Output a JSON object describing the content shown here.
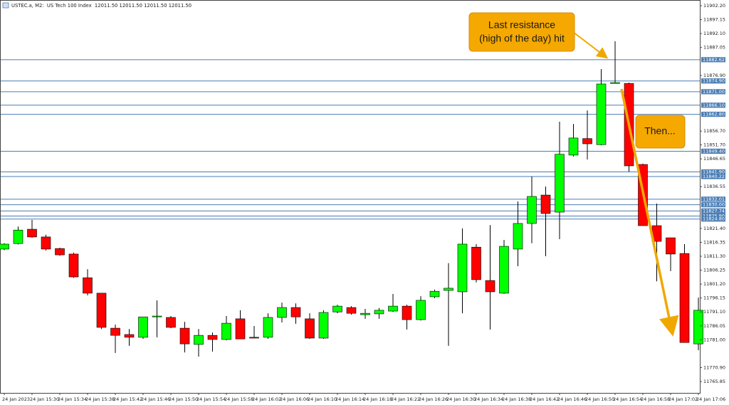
{
  "chart_data": {
    "type": "candlestick",
    "title": "USTEC.a, M2:  US Tech 100 Index  12011.50 12011.50 12011.50 12011.50",
    "annotations": [
      [
        "Last resistance",
        "(high of the day) hit"
      ],
      [
        "Then..."
      ]
    ],
    "categories": [
      "24 Jan 2023",
      null,
      "24 Jan 15:30",
      null,
      "24 Jan 15:34",
      null,
      "24 Jan 15:38",
      null,
      "24 Jan 15:42",
      null,
      "24 Jan 15:46",
      null,
      "24 Jan 15:50",
      null,
      "24 Jan 15:54",
      null,
      "24 Jan 15:58",
      null,
      "24 Jan 16:02",
      null,
      "24 Jan 16:06",
      null,
      "24 Jan 16:10",
      null,
      "24 Jan 16:14",
      null,
      "24 Jan 16:18",
      null,
      "24 Jan 16:22",
      null,
      "24 Jan 16:26",
      null,
      "24 Jan 16:30",
      null,
      "24 Jan 16:34",
      null,
      "24 Jan 16:38",
      null,
      "24 Jan 16:42",
      null,
      "24 Jan 16:46",
      null,
      "24 Jan 16:50",
      null,
      "24 Jan 16:54",
      null,
      "24 Jan 16:58",
      null,
      "24 Jan 17:02",
      null,
      "24 Jan 17:06"
    ],
    "open": [
      11813.9,
      11815.9,
      11821.1,
      11818.3,
      11814.1,
      11812.1,
      11803.5,
      11797.9,
      11785.2,
      11782.9,
      11781.9,
      11789.3,
      11789.1,
      11785.2,
      11779.3,
      11782.6,
      11781.1,
      11788.6,
      11781.9,
      11781.9,
      11789.1,
      11792.7,
      11788.6,
      11781.6,
      11791.1,
      11792.7,
      11790.1,
      11790.4,
      11791.4,
      11793.2,
      11788.3,
      11796.6,
      11798.9,
      11798.4,
      11814.6,
      11802.5,
      11797.9,
      11813.9,
      11823.2,
      11833.5,
      11827.3,
      11848.0,
      11854.0,
      11851.8,
      11874.0,
      11874.0,
      11844.6,
      11822.4,
      11818.0,
      11812.3,
      11779.5
    ],
    "high": [
      11816.0,
      11822.1,
      11824.5,
      11819.1,
      11814.4,
      11812.6,
      11806.6,
      11797.9,
      11786.5,
      11784.9,
      11789.3,
      11795.3,
      11789.6,
      11787.5,
      11784.9,
      11783.6,
      11789.6,
      11791.7,
      11786.0,
      11790.6,
      11794.5,
      11794.2,
      11790.6,
      11791.7,
      11793.7,
      11793.2,
      11792.2,
      11792.5,
      11797.6,
      11793.7,
      11796.8,
      11799.2,
      11808.8,
      11821.4,
      11815.7,
      11822.6,
      11817.2,
      11831.2,
      11840.2,
      11836.6,
      11860.1,
      11859.3,
      11864.2,
      11879.2,
      11889.3,
      11874.3,
      11844.9,
      11830.4,
      11818.0,
      11815.7,
      11796.3
    ],
    "low": [
      11813.5,
      11815.6,
      11818.0,
      11813.4,
      11811.5,
      11803.5,
      11797.1,
      11784.9,
      11776.2,
      11778.8,
      11781.3,
      11781.9,
      11785.2,
      11776.4,
      11774.9,
      11776.7,
      11780.8,
      11781.3,
      11781.6,
      11781.3,
      11787.3,
      11786.8,
      11781.3,
      11781.3,
      11790.6,
      11790.1,
      11788.6,
      11788.6,
      11791.1,
      11784.7,
      11788.0,
      11796.1,
      11778.8,
      11790.6,
      11801.8,
      11784.7,
      11797.6,
      11807.7,
      11816.0,
      11811.3,
      11817.5,
      11847.5,
      11846.4,
      11851.6,
      11874.0,
      11842.0,
      11822.4,
      11802.2,
      11805.9,
      11780.0,
      11777.2
    ],
    "close": [
      11815.7,
      11820.8,
      11818.3,
      11813.9,
      11811.8,
      11803.8,
      11797.9,
      11785.5,
      11782.6,
      11781.9,
      11789.3,
      11789.6,
      11785.5,
      11779.5,
      11782.6,
      11781.1,
      11787.0,
      11781.3,
      11781.6,
      11789.1,
      11792.7,
      11789.3,
      11781.6,
      11790.9,
      11793.2,
      11790.6,
      11790.6,
      11791.7,
      11793.2,
      11788.3,
      11795.3,
      11798.6,
      11799.7,
      11815.7,
      11802.8,
      11798.4,
      11814.9,
      11823.2,
      11833.0,
      11826.8,
      11848.3,
      11854.2,
      11852.1,
      11873.8,
      11874.3,
      11844.1,
      11822.4,
      11816.7,
      11812.1,
      11780.0,
      11791.7
    ],
    "up_color": "#00ff00",
    "down_color": "#ff0000",
    "levels": [
      11882.62,
      {
        "value": 11874.9,
        "label": "11874.90"
      },
      {
        "value": 11871.0,
        "label": "11871.00"
      },
      {
        "value": 11866.1,
        "label": "11866.10"
      },
      {
        "value": 11862.8,
        "label": "11862.80"
      },
      {
        "value": 11849.4,
        "label": "11849.40"
      },
      {
        "value": 11841.9,
        "label": "11841.90"
      },
      11840.22,
      11832.01,
      {
        "value": 11830.0,
        "label": "11830.00"
      },
      11827.74,
      {
        "value": 11825.9,
        "label": "11825.90"
      },
      {
        "value": 11824.8,
        "label": "11824.80"
      }
    ],
    "level_color": "#4a7db5",
    "ylim": [
      11761.72,
      11904.27
    ],
    "yticks": [
      {
        "value": 11902.2,
        "label": "11902.20"
      },
      11897.15,
      {
        "value": 11892.1,
        "label": "11892.10"
      },
      11887.05,
      {
        "value": 11876.9,
        "label": "11876.90"
      },
      {
        "value": 11856.7,
        "label": "11856.70"
      },
      {
        "value": 11851.7,
        "label": "11851.70"
      },
      11846.65,
      11836.55,
      {
        "value": 11821.4,
        "label": "11821.40"
      },
      11816.35,
      {
        "value": 11811.3,
        "label": "11811.30"
      },
      11806.25,
      {
        "value": 11801.2,
        "label": "11801.20"
      },
      11796.15,
      {
        "value": 11791.1,
        "label": "11791.10"
      },
      11786.05,
      {
        "value": 11781.0,
        "label": "11781.00"
      },
      {
        "value": 11770.9,
        "label": "11770.90"
      },
      11765.85
    ]
  }
}
